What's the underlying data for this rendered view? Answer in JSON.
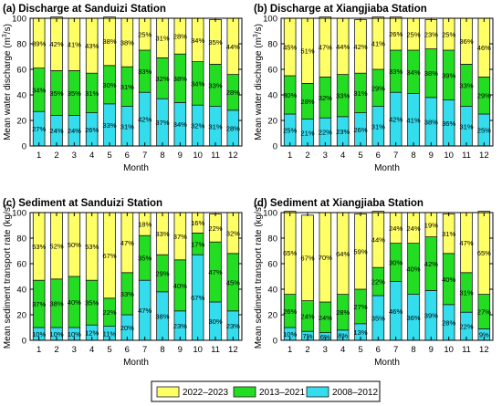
{
  "chart_data": [
    {
      "type": "bar",
      "stacked": true,
      "title": "(a) Discharge at Sanduizi Station",
      "xlabel": "Month",
      "ylabel": "Mean water discharge (m3/s)",
      "ylabel_main": "Mean water discharge (m",
      "ylabel_sup": "3",
      "ylabel_end": "/s)",
      "ylim": [
        0,
        100
      ],
      "yticks": [
        "0",
        "20",
        "40",
        "60",
        "80",
        "100"
      ],
      "categories": [
        "1",
        "2",
        "3",
        "4",
        "5",
        "6",
        "7",
        "8",
        "9",
        "10",
        "11",
        "12"
      ],
      "series": [
        {
          "name": "2008–2012",
          "values": [
            27,
            24,
            24,
            26,
            33,
            31,
            42,
            37,
            34,
            32,
            31,
            28
          ]
        },
        {
          "name": "2013–2021",
          "values": [
            34,
            35,
            35,
            31,
            30,
            31,
            33,
            32,
            38,
            34,
            33,
            28
          ]
        },
        {
          "name": "2022–2023",
          "values": [
            39,
            42,
            41,
            43,
            38,
            38,
            25,
            31,
            28,
            34,
            35,
            44
          ]
        }
      ]
    },
    {
      "type": "bar",
      "stacked": true,
      "title": "(b) Discharge at Xiangjiaba Station",
      "xlabel": "Month",
      "ylabel": "Mean water discharge (m3/s)",
      "ylabel_main": "Mean water discharge (m",
      "ylabel_sup": "3",
      "ylabel_end": "/s)",
      "ylim": [
        0,
        100
      ],
      "yticks": [
        "0",
        "20",
        "40",
        "60",
        "80",
        "100"
      ],
      "categories": [
        "1",
        "2",
        "3",
        "4",
        "5",
        "6",
        "7",
        "8",
        "9",
        "10",
        "11",
        "12"
      ],
      "series": [
        {
          "name": "2008–2012",
          "values": [
            25,
            21,
            22,
            23,
            26,
            31,
            42,
            41,
            38,
            36,
            31,
            25
          ]
        },
        {
          "name": "2013–2021",
          "values": [
            30,
            28,
            32,
            33,
            31,
            29,
            33,
            34,
            38,
            39,
            33,
            29
          ]
        },
        {
          "name": "2022–2023",
          "values": [
            45,
            51,
            47,
            44,
            42,
            41,
            26,
            25,
            23,
            25,
            36,
            46
          ]
        }
      ]
    },
    {
      "type": "bar",
      "stacked": true,
      "title": "(c) Sediment at Sanduizi Station",
      "xlabel": "Month",
      "ylabel": "Mean sediment transport rate (kg/s)",
      "ylabel_main": "Mean sediment transport rate (kg/s)",
      "ylabel_sup": "",
      "ylabel_end": "",
      "ylim": [
        0,
        100
      ],
      "yticks": [
        "0",
        "20",
        "40",
        "60",
        "80",
        "100"
      ],
      "categories": [
        "1",
        "2",
        "3",
        "4",
        "5",
        "6",
        "7",
        "8",
        "9",
        "10",
        "11",
        "12"
      ],
      "series": [
        {
          "name": "2008–2012",
          "values": [
            10,
            10,
            10,
            12,
            11,
            20,
            47,
            38,
            23,
            67,
            30,
            23
          ]
        },
        {
          "name": "2013–2021",
          "values": [
            37,
            38,
            40,
            35,
            22,
            33,
            35,
            29,
            40,
            17,
            47,
            45
          ]
        },
        {
          "name": "2022–2023",
          "values": [
            53,
            52,
            50,
            53,
            67,
            47,
            18,
            33,
            37,
            16,
            22,
            32
          ]
        }
      ]
    },
    {
      "type": "bar",
      "stacked": true,
      "title": "(d) Sediment at Xiangjiaba Station",
      "xlabel": "Month",
      "ylabel": "Mean sediment transport rate (kg/s)",
      "ylabel_main": "Mean sediment transport rate (kg/s)",
      "ylabel_sup": "",
      "ylabel_end": "",
      "ylim": [
        0,
        100
      ],
      "yticks": [
        "0",
        "20",
        "40",
        "60",
        "80",
        "100"
      ],
      "categories": [
        "1",
        "2",
        "3",
        "4",
        "5",
        "6",
        "7",
        "8",
        "9",
        "10",
        "11",
        "12"
      ],
      "series": [
        {
          "name": "2008–2012",
          "values": [
            10,
            7,
            6,
            8,
            13,
            35,
            46,
            36,
            39,
            28,
            22,
            9
          ]
        },
        {
          "name": "2013–2021",
          "values": [
            26,
            24,
            24,
            28,
            27,
            22,
            30,
            40,
            42,
            40,
            31,
            27
          ]
        },
        {
          "name": "2022–2023",
          "values": [
            65,
            67,
            70,
            64,
            59,
            44,
            24,
            24,
            19,
            31,
            47,
            65
          ]
        }
      ]
    }
  ],
  "legend": {
    "items": [
      {
        "label": "2022–2023",
        "color": "#ffff66"
      },
      {
        "label": "2013–2021",
        "color": "#22dd22"
      },
      {
        "label": "2008–2012",
        "color": "#33ddee"
      }
    ]
  },
  "colors": {
    "2008–2012": "#33ddee",
    "2013–2021": "#22dd22",
    "2022–2023": "#ffff66"
  }
}
